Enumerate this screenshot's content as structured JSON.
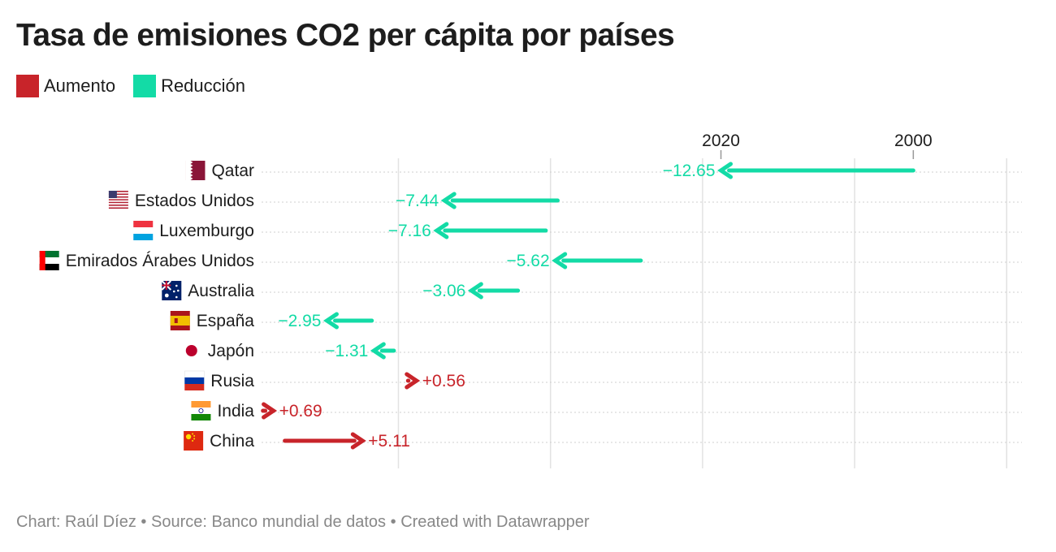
{
  "title": "Tasa de emisiones CO2 per cápita por países",
  "legend": [
    {
      "label": "Aumento",
      "color": "#c8242a"
    },
    {
      "label": "Reducción",
      "color": "#13dba6"
    }
  ],
  "footer": {
    "chart_by": "Chart: Raúl Díez",
    "source": "Source: Banco mundial de datos",
    "created": "Created with Datawrapper",
    "separator": "•"
  },
  "chart_data": {
    "type": "arrow",
    "annotations": [
      "2020",
      "2000"
    ],
    "x_range": [
      1,
      51
    ],
    "grid": true,
    "rows": [
      {
        "country": "Qatar",
        "flag_icon": "qatar-flag-icon",
        "y2000": 43.86,
        "y2020": 31.21,
        "label": "−12.65",
        "direction": "decrease"
      },
      {
        "country": "Estados Unidos",
        "flag_icon": "usa-flag-icon",
        "y2000": 20.47,
        "y2020": 13.03,
        "label": "−7.44",
        "direction": "decrease"
      },
      {
        "country": "Luxemburgo",
        "flag_icon": "luxembourg-flag-icon",
        "y2000": 19.69,
        "y2020": 12.53,
        "label": "−7.16",
        "direction": "decrease"
      },
      {
        "country": "Emirados Árabes Unidos",
        "flag_icon": "uae-flag-icon",
        "y2000": 25.94,
        "y2020": 20.32,
        "label": "−5.62",
        "direction": "decrease"
      },
      {
        "country": "Australia",
        "flag_icon": "australia-flag-icon",
        "y2000": 17.86,
        "y2020": 14.8,
        "label": "−3.06",
        "direction": "decrease"
      },
      {
        "country": "España",
        "flag_icon": "spain-flag-icon",
        "y2000": 8.25,
        "y2020": 5.3,
        "label": "−2.95",
        "direction": "decrease"
      },
      {
        "country": "Japón",
        "flag_icon": "japan-flag-icon",
        "y2000": 9.7,
        "y2020": 8.39,
        "label": "−1.31",
        "direction": "decrease"
      },
      {
        "country": "Rusia",
        "flag_icon": "russia-flag-icon",
        "y2000": 10.63,
        "y2020": 11.19,
        "label": "+0.56",
        "direction": "increase"
      },
      {
        "country": "India",
        "flag_icon": "india-flag-icon",
        "y2000": 1.09,
        "y2020": 1.78,
        "label": "+0.69",
        "direction": "increase"
      },
      {
        "country": "China",
        "flag_icon": "china-flag-icon",
        "y2000": 2.53,
        "y2020": 7.64,
        "label": "+5.11",
        "direction": "increase"
      }
    ]
  }
}
